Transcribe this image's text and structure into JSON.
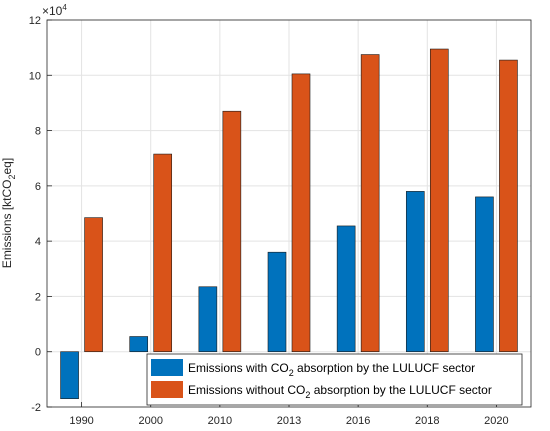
{
  "chart_data": {
    "type": "bar",
    "categories": [
      "1990",
      "2000",
      "2010",
      "2013",
      "2016",
      "2018",
      "2020"
    ],
    "series": [
      {
        "name": "Emissions with CO₂ absorption by the LULUCF sector",
        "color": "#0072BD",
        "values": [
          -1.7,
          0.55,
          2.35,
          3.6,
          4.55,
          5.8,
          5.6
        ]
      },
      {
        "name": "Emissions without CO₂ absorption by the LULUCF sector",
        "color": "#D95319",
        "values": [
          4.85,
          7.15,
          8.7,
          10.05,
          10.75,
          10.95,
          10.55
        ]
      }
    ],
    "ylim": [
      -2,
      12
    ],
    "yticks": [
      "-2",
      "0",
      "2",
      "4",
      "6",
      "8",
      "10",
      "12"
    ],
    "ylabel": {
      "prefix": "Emissions [ktCO",
      "sub": "2",
      "suffix": "eq]"
    },
    "multiplier": {
      "base": "×10",
      "exponent": "4"
    },
    "grid": true,
    "legend": {
      "position": "bottom-right",
      "entries": [
        {
          "prefix": "Emissions with CO",
          "sub": "2",
          "suffix": " absorption by the LULUCF sector"
        },
        {
          "prefix": "Emissions without CO",
          "sub": "2",
          "suffix": " absorption by the LULUCF sector"
        }
      ]
    }
  }
}
